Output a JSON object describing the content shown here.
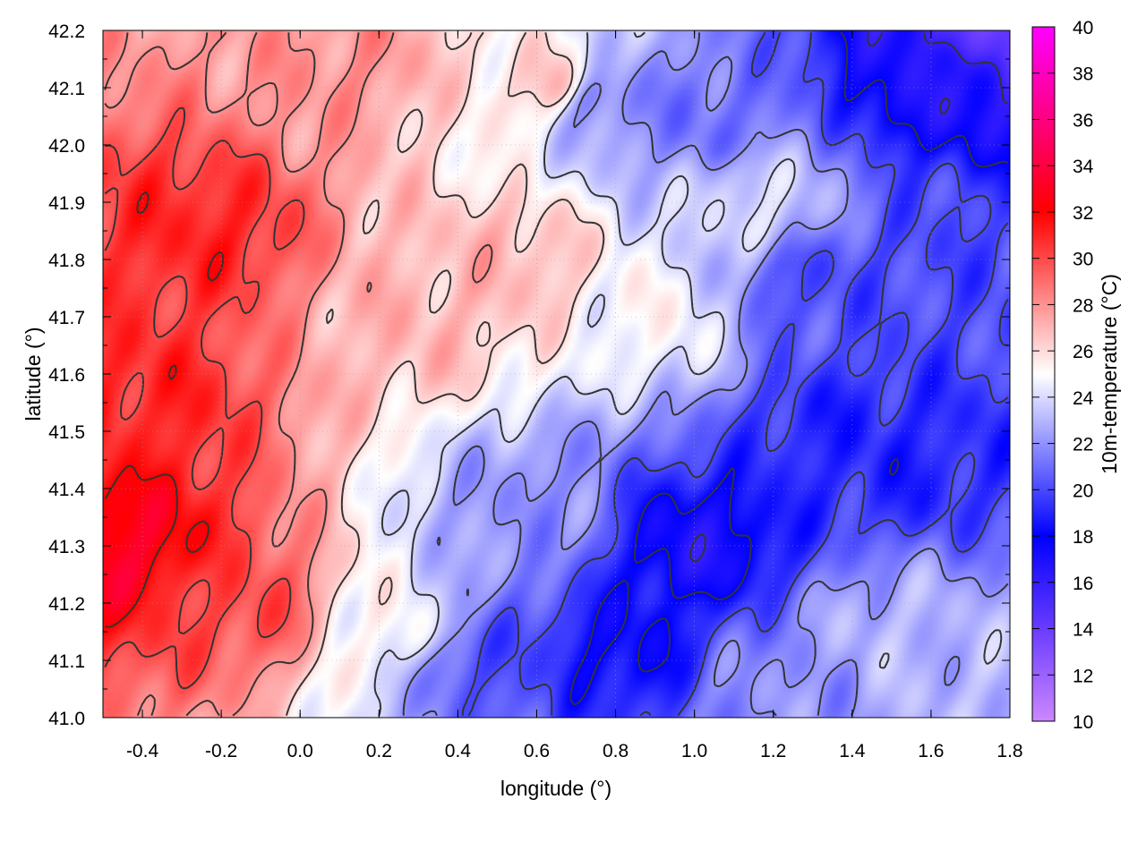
{
  "chart_data": {
    "type": "heatmap",
    "title": "",
    "xlabel": "longitude (°)",
    "ylabel": "latitude (°)",
    "colorbar_label": "10m-temperature (°C)",
    "xlim": [
      -0.5,
      1.8
    ],
    "ylim": [
      41.0,
      42.2
    ],
    "x_ticks": [
      -0.4,
      -0.2,
      0.0,
      0.2,
      0.4,
      0.6,
      0.8,
      1.0,
      1.2,
      1.4,
      1.6,
      1.8
    ],
    "x_tick_labels": [
      "-0.4",
      "-0.2",
      "0.0",
      "0.2",
      "0.4",
      "0.6",
      "0.8",
      "1.0",
      "1.2",
      "1.4",
      "1.6",
      "1.8"
    ],
    "y_ticks": [
      41.0,
      41.1,
      41.2,
      41.3,
      41.4,
      41.5,
      41.6,
      41.7,
      41.8,
      41.9,
      42.0,
      42.1,
      42.2
    ],
    "y_tick_labels": [
      "41.0",
      "41.1",
      "41.2",
      "41.3",
      "41.4",
      "41.5",
      "41.6",
      "41.7",
      "41.8",
      "41.9",
      "42.0",
      "42.1",
      "42.2"
    ],
    "colorbar_range": [
      10,
      40
    ],
    "colorbar_ticks": [
      10,
      12,
      14,
      16,
      18,
      20,
      22,
      24,
      26,
      28,
      30,
      32,
      34,
      36,
      38,
      40
    ],
    "colorbar_tick_labels": [
      "10",
      "12",
      "14",
      "16",
      "18",
      "20",
      "22",
      "24",
      "26",
      "28",
      "30",
      "32",
      "34",
      "36",
      "38",
      "40"
    ],
    "colormap": [
      {
        "value": 10,
        "color": "#cc88ff"
      },
      {
        "value": 14,
        "color": "#6a3cff"
      },
      {
        "value": 18,
        "color": "#0000ff"
      },
      {
        "value": 25,
        "color": "#ffffff"
      },
      {
        "value": 32,
        "color": "#ff0000"
      },
      {
        "value": 36,
        "color": "#ff0080"
      },
      {
        "value": 40,
        "color": "#ff00ff"
      }
    ],
    "contour_levels": [
      16,
      18,
      20,
      22,
      24,
      26,
      28,
      30,
      32
    ],
    "contour_color": "#333333",
    "grid": true,
    "field_centers": [
      {
        "lon": -0.45,
        "lat": 41.3,
        "temp": 33
      },
      {
        "lon": -0.25,
        "lat": 41.85,
        "temp": 31
      },
      {
        "lon": -0.4,
        "lat": 41.55,
        "temp": 31
      },
      {
        "lon": -0.15,
        "lat": 41.2,
        "temp": 30
      },
      {
        "lon": 0.1,
        "lat": 42.15,
        "temp": 28
      },
      {
        "lon": 0.3,
        "lat": 41.7,
        "temp": 27
      },
      {
        "lon": 0.55,
        "lat": 41.8,
        "temp": 27
      },
      {
        "lon": 0.65,
        "lat": 42.1,
        "temp": 27
      },
      {
        "lon": 0.25,
        "lat": 41.15,
        "temp": 25
      },
      {
        "lon": 0.9,
        "lat": 41.7,
        "temp": 25
      },
      {
        "lon": 1.15,
        "lat": 41.9,
        "temp": 24
      },
      {
        "lon": 0.45,
        "lat": 41.1,
        "temp": 20
      },
      {
        "lon": 0.6,
        "lat": 41.35,
        "temp": 22
      },
      {
        "lon": 1.0,
        "lat": 41.3,
        "temp": 17
      },
      {
        "lon": 0.82,
        "lat": 41.12,
        "temp": 18
      },
      {
        "lon": 1.35,
        "lat": 41.5,
        "temp": 19
      },
      {
        "lon": 1.55,
        "lat": 41.45,
        "temp": 19
      },
      {
        "lon": 1.3,
        "lat": 41.75,
        "temp": 20
      },
      {
        "lon": 1.6,
        "lat": 41.8,
        "temp": 20
      },
      {
        "lon": 1.6,
        "lat": 42.12,
        "temp": 17
      },
      {
        "lon": 1.05,
        "lat": 42.05,
        "temp": 21
      },
      {
        "lon": 0.75,
        "lat": 42.08,
        "temp": 21
      },
      {
        "lon": 1.5,
        "lat": 41.15,
        "temp": 23
      },
      {
        "lon": 1.7,
        "lat": 41.05,
        "temp": 23
      },
      {
        "lon": 1.2,
        "lat": 41.05,
        "temp": 22
      },
      {
        "lon": 1.75,
        "lat": 42.2,
        "temp": 14
      }
    ]
  }
}
